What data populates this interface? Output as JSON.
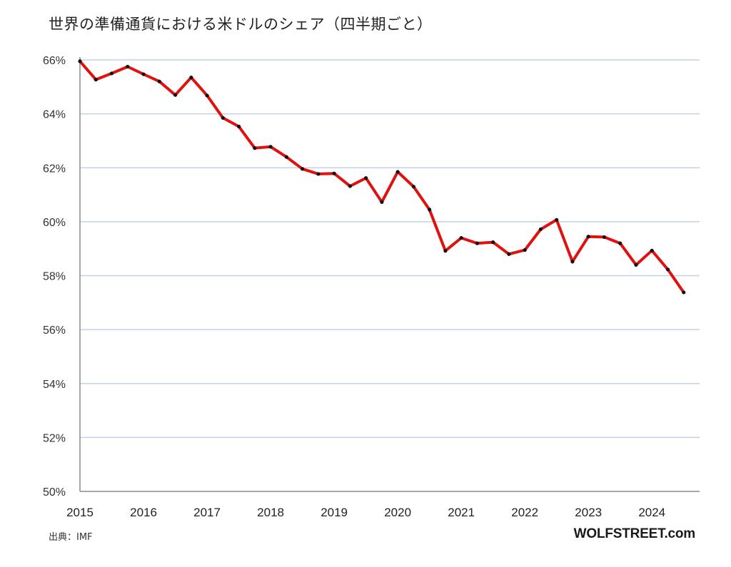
{
  "title": "世界の準備通貨における米ドルのシェア（四半期ごと）",
  "source": "出典：IMF",
  "brand": "WOLFSTREET.com",
  "colors": {
    "line": "#e0120f",
    "marker": "#111111",
    "grid": "#c5d3e6",
    "axis": "#8a8a8a"
  },
  "chart_data": {
    "type": "line",
    "title": "世界の準備通貨における米ドルのシェア（四半期ごと）",
    "xlabel": "",
    "ylabel": "",
    "ylim": [
      50,
      66
    ],
    "xlim": [
      2015,
      2024.75
    ],
    "grid": true,
    "legend": "none",
    "y_ticks": [
      "66%",
      "64%",
      "62%",
      "60%",
      "58%",
      "56%",
      "54%",
      "52%",
      "50%"
    ],
    "x_ticks": [
      "2015",
      "2016",
      "2017",
      "2018",
      "2019",
      "2020",
      "2021",
      "2022",
      "2023",
      "2024"
    ],
    "series": [
      {
        "x": [
          2015,
          2015.25,
          2015.5,
          2015.75,
          2016,
          2016.25,
          2016.5,
          2016.75,
          2017,
          2017.25,
          2017.5,
          2017.75,
          2018,
          2018.25,
          2018.5,
          2018.75,
          2019,
          2019.25,
          2019.5,
          2019.75,
          2020,
          2020.25,
          2020.5,
          2020.75,
          2021,
          2021.25,
          2021.5,
          2021.75,
          2022,
          2022.25,
          2022.5,
          2022.75,
          2023,
          2023.25,
          2023.5,
          2023.75,
          2024,
          2024.25,
          2024.5
        ],
        "values": [
          65.95,
          65.27,
          65.5,
          65.75,
          65.47,
          65.2,
          64.7,
          65.35,
          64.68,
          63.85,
          63.53,
          62.73,
          62.78,
          62.4,
          61.96,
          61.77,
          61.79,
          61.32,
          61.62,
          60.73,
          61.85,
          61.3,
          60.45,
          58.92,
          59.4,
          59.2,
          59.24,
          58.8,
          58.95,
          59.72,
          60.07,
          58.52,
          59.45,
          59.43,
          59.2,
          58.4,
          58.93,
          58.23,
          57.38
        ]
      }
    ]
  }
}
